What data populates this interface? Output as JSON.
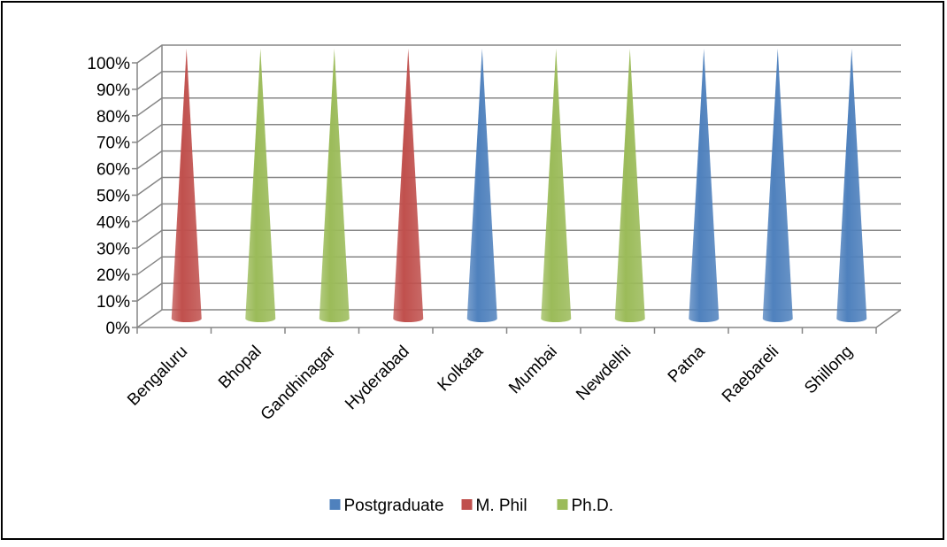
{
  "chart_data": {
    "type": "bar",
    "bar_shape": "cone",
    "stacked_percent": true,
    "categories": [
      "Bengaluru",
      "Bhopal",
      "Gandhinagar",
      "Hyderabad",
      "Kolkata",
      "Mumbai",
      "Newdelhi",
      "Patna",
      "Raebareli",
      "Shillong"
    ],
    "series": [
      {
        "name": "Postgraduate",
        "color": "#4F81BD",
        "values": [
          0,
          0,
          0,
          0,
          100,
          0,
          0,
          100,
          100,
          100
        ]
      },
      {
        "name": "M. Phil",
        "color": "#C0504D",
        "values": [
          100,
          0,
          0,
          100,
          0,
          0,
          0,
          0,
          0,
          0
        ]
      },
      {
        "name": "Ph.D.",
        "color": "#9BBB59",
        "values": [
          0,
          100,
          100,
          0,
          0,
          100,
          100,
          0,
          0,
          0
        ]
      }
    ],
    "y_ticks": [
      "0%",
      "10%",
      "20%",
      "30%",
      "40%",
      "50%",
      "60%",
      "70%",
      "80%",
      "90%",
      "100%"
    ],
    "ylim": [
      0,
      100
    ],
    "grid": true,
    "legend_position": "bottom"
  }
}
